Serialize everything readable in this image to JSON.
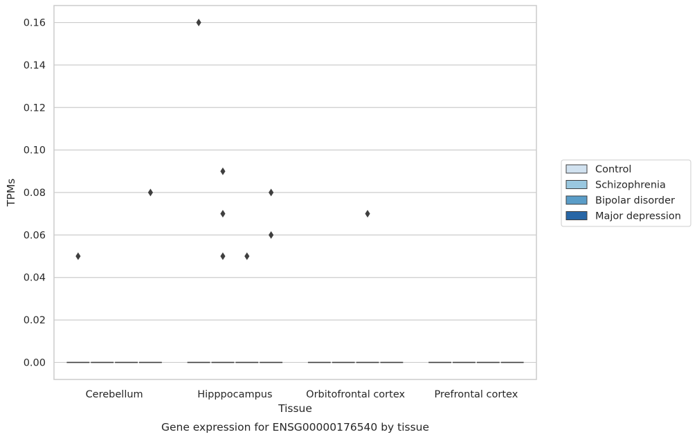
{
  "chart_data": {
    "type": "box",
    "title": "",
    "caption": "Gene expression for ENSG00000176540 by tissue",
    "xlabel": "Tissue",
    "ylabel": "TPMs",
    "ylim": [
      -0.008,
      0.168
    ],
    "yticks": [
      "0.00",
      "0.02",
      "0.04",
      "0.06",
      "0.08",
      "0.10",
      "0.12",
      "0.14",
      "0.16"
    ],
    "ytick_values": [
      0,
      0.02,
      0.04,
      0.06,
      0.08,
      0.1,
      0.12,
      0.14,
      0.16
    ],
    "categories": [
      "Cerebellum",
      "Hipppocampus",
      "Orbitofrontal cortex",
      "Prefrontal cortex"
    ],
    "grid": true,
    "legend_position": "right",
    "series": [
      {
        "name": "Control",
        "color": "#d1e2f0",
        "medians": [
          0,
          0,
          0,
          0
        ],
        "outliers": [
          [
            0.05
          ],
          [
            0.16
          ],
          [],
          []
        ]
      },
      {
        "name": "Schizophrenia",
        "color": "#9ac8e0",
        "medians": [
          0,
          0,
          0,
          0
        ],
        "outliers": [
          [],
          [
            0.09,
            0.07,
            0.05
          ],
          [],
          []
        ]
      },
      {
        "name": "Bipolar disorder",
        "color": "#5a9dc8",
        "medians": [
          0,
          0,
          0,
          0
        ],
        "outliers": [
          [],
          [
            0.05
          ],
          [
            0.07
          ],
          []
        ]
      },
      {
        "name": "Major depression",
        "color": "#2766a6",
        "medians": [
          0,
          0,
          0,
          0
        ],
        "outliers": [
          [
            0.08
          ],
          [
            0.08,
            0.06
          ],
          [],
          []
        ]
      }
    ]
  }
}
